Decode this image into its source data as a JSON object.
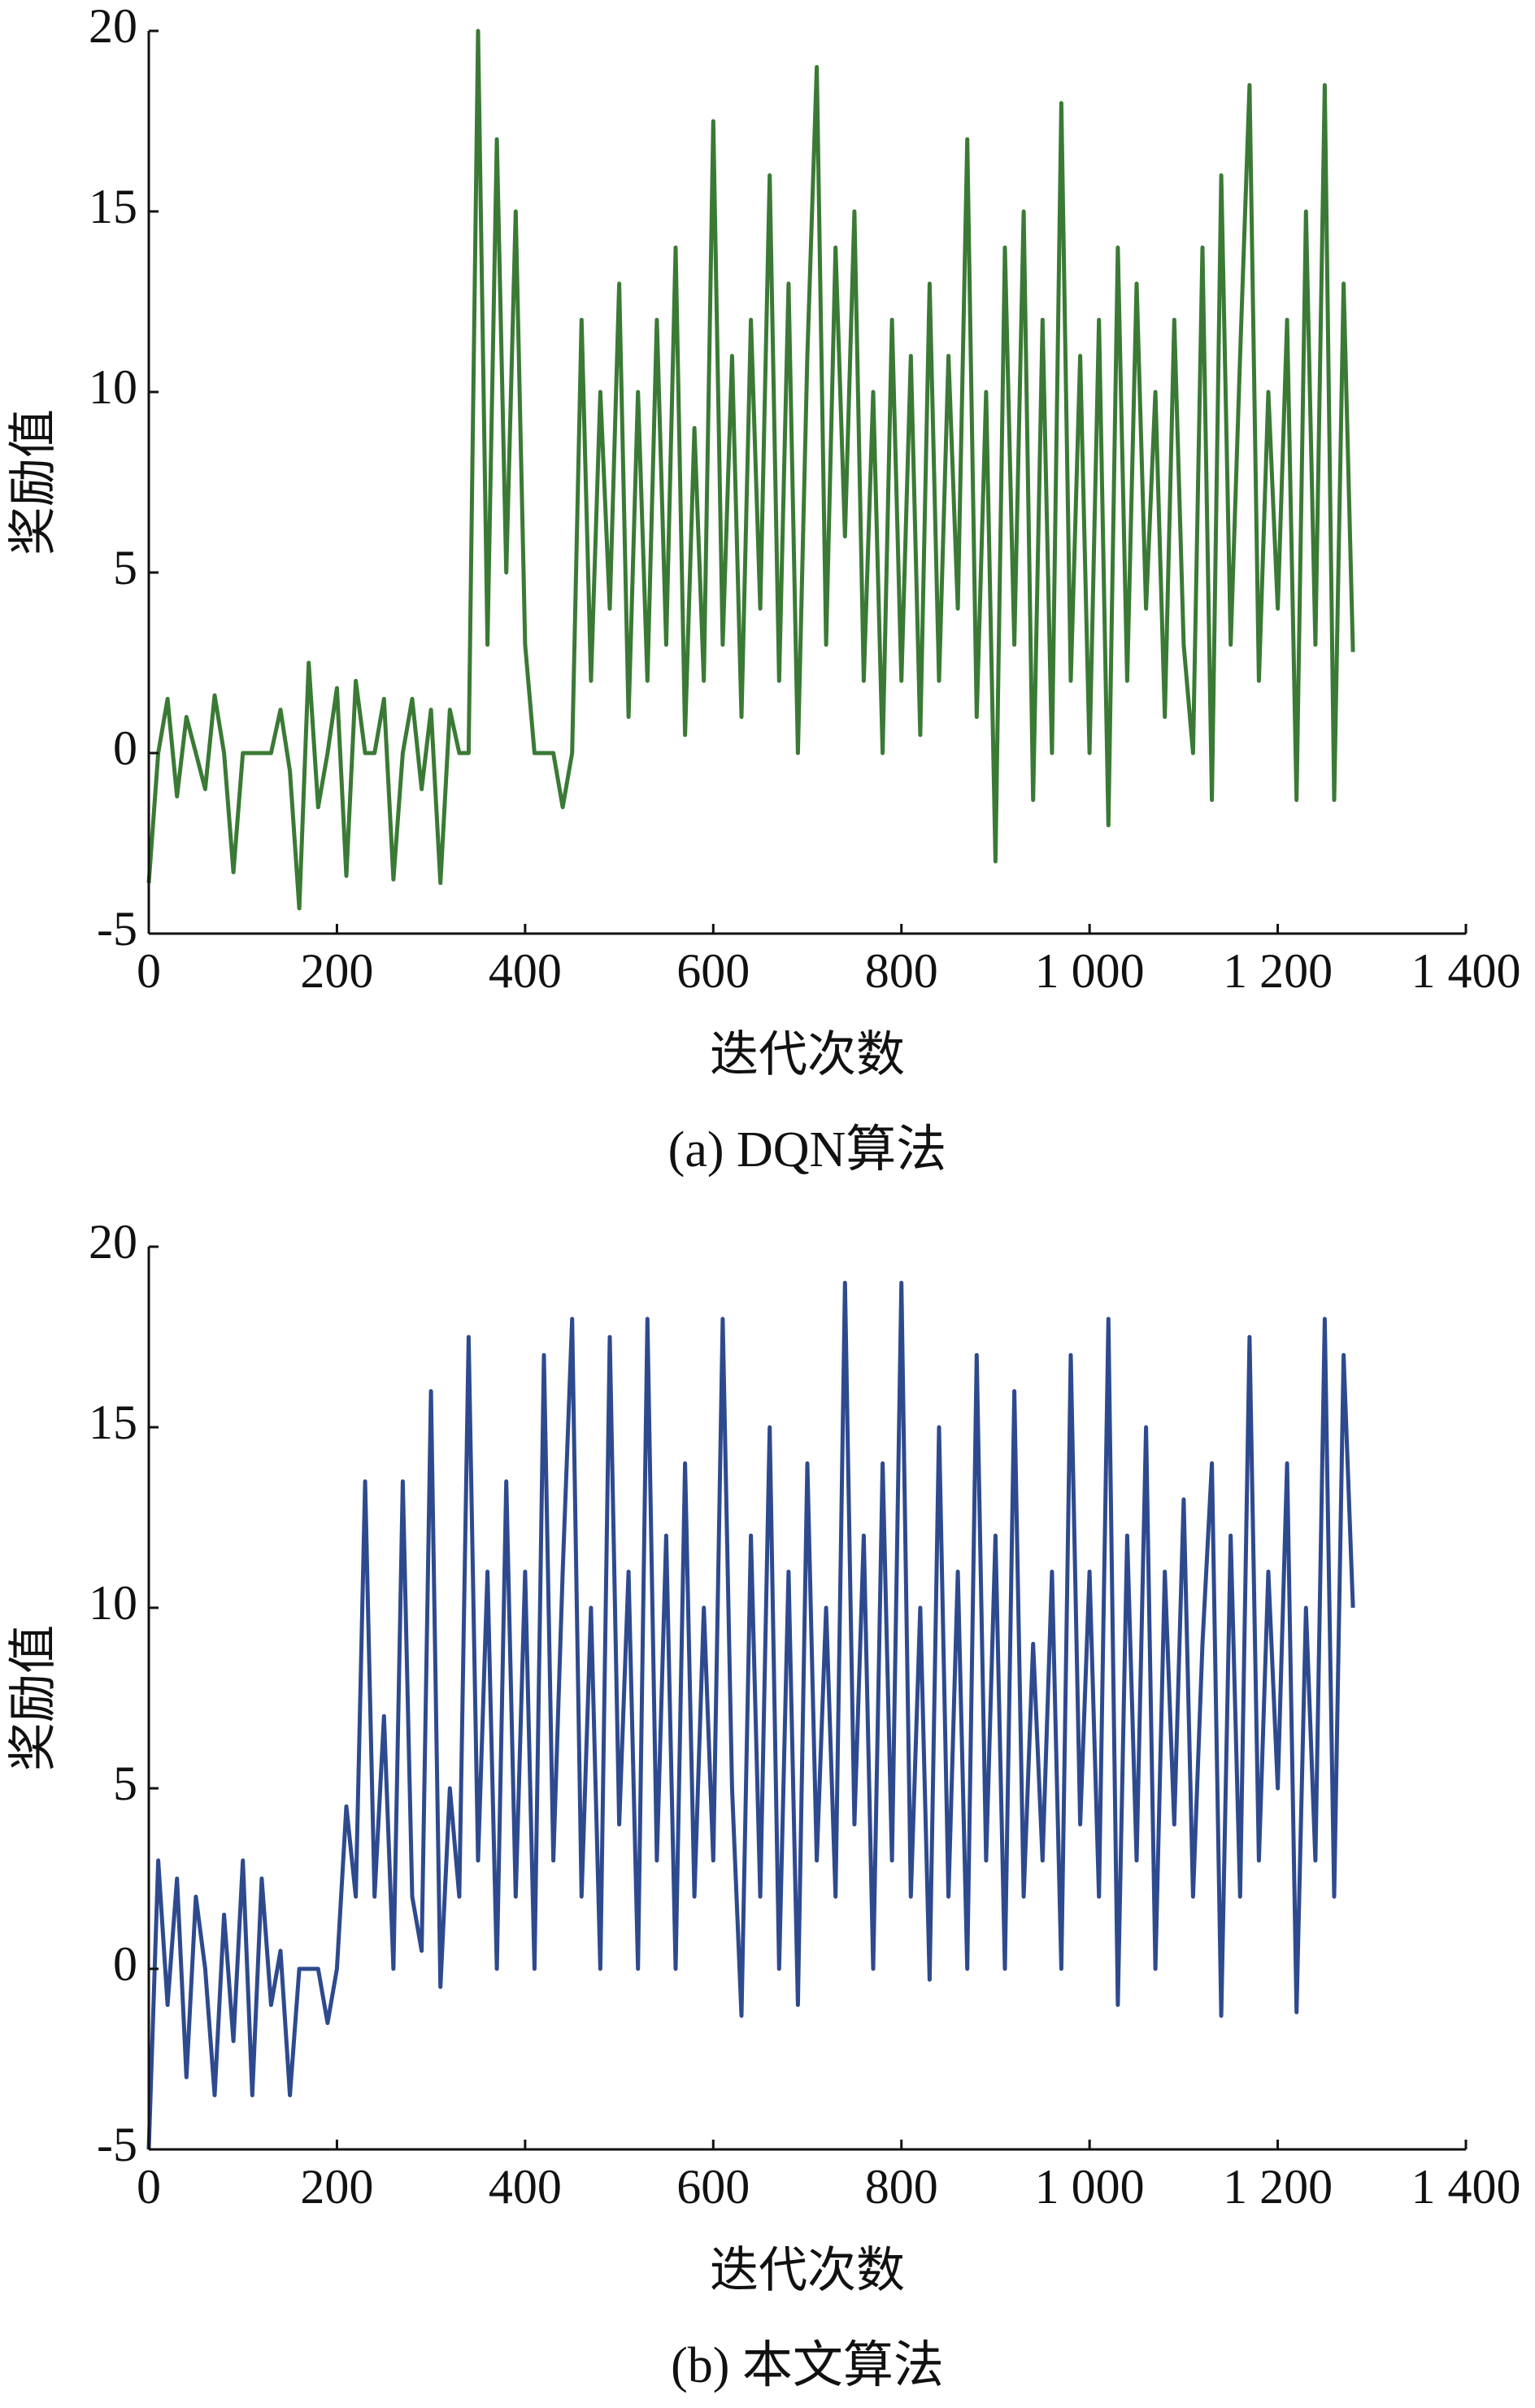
{
  "chart_data": [
    {
      "type": "line",
      "title": "(a) DQN算法",
      "xlabel": "迭代次数",
      "ylabel": "奖励值",
      "x": [
        0,
        10,
        20,
        30,
        40,
        50,
        60,
        70,
        80,
        90,
        100,
        110,
        120,
        130,
        140,
        150,
        160,
        170,
        180,
        190,
        200,
        210,
        220,
        230,
        240,
        250,
        260,
        270,
        280,
        290,
        300,
        310,
        320,
        330,
        340,
        350,
        360,
        370,
        380,
        390,
        400,
        410,
        420,
        430,
        440,
        450,
        460,
        470,
        480,
        490,
        500,
        510,
        520,
        530,
        540,
        550,
        560,
        570,
        580,
        590,
        600,
        610,
        620,
        630,
        640,
        650,
        660,
        670,
        680,
        690,
        700,
        710,
        720,
        730,
        740,
        750,
        760,
        770,
        780,
        790,
        800,
        810,
        820,
        830,
        840,
        850,
        860,
        870,
        880,
        890,
        900,
        910,
        920,
        930,
        940,
        950,
        960,
        970,
        980,
        990,
        1000,
        1010,
        1020,
        1030,
        1040,
        1050,
        1060,
        1070,
        1080,
        1090,
        1100,
        1110,
        1120,
        1130,
        1140,
        1150,
        1160,
        1170,
        1180,
        1190,
        1200,
        1210,
        1220,
        1230,
        1240,
        1250,
        1260,
        1270,
        1280
      ],
      "series": [
        {
          "color": "#3a7a35",
          "values": [
            -3.6,
            0,
            1.5,
            -1.2,
            1,
            0,
            -1,
            1.6,
            0,
            -3.3,
            0,
            0,
            0,
            0,
            1.2,
            -0.5,
            -4.3,
            2.5,
            -1.5,
            0,
            1.8,
            -3.4,
            2,
            0,
            0,
            1.5,
            -3.5,
            0,
            1.5,
            -1,
            1.2,
            -3.6,
            1.2,
            0,
            0,
            20,
            3,
            17,
            5,
            15,
            3,
            0,
            0,
            0,
            -1.5,
            0,
            12,
            2,
            10,
            4,
            13,
            1,
            10,
            2,
            12,
            3,
            14,
            0.5,
            9,
            2,
            17.5,
            3,
            11,
            1,
            12,
            4,
            16,
            2,
            13,
            0,
            11,
            19,
            3,
            14,
            6,
            15,
            2,
            10,
            0,
            12,
            2,
            11,
            0.5,
            13,
            2,
            11,
            4,
            17,
            1,
            10,
            -3,
            14,
            3,
            15,
            -1.3,
            12,
            0,
            18,
            2,
            11,
            0,
            12,
            -2,
            14,
            2,
            13,
            4,
            10,
            1,
            12,
            3,
            0,
            14,
            -1.3,
            16,
            3,
            11,
            18.5,
            2,
            10,
            4,
            12,
            -1.3,
            15,
            3,
            18.5,
            -1.3,
            13,
            2.8
          ]
        }
      ],
      "xlim": [
        0,
        1400
      ],
      "ylim": [
        -5,
        20
      ],
      "xticks": [
        0,
        200,
        400,
        600,
        800,
        {
          "value": 1000,
          "label": "1 000"
        },
        {
          "value": 1200,
          "label": "1 200"
        },
        {
          "value": 1400,
          "label": "1 400"
        }
      ],
      "yticks": [
        -5,
        0,
        5,
        10,
        15,
        20
      ],
      "grid": false
    },
    {
      "type": "line",
      "title": "(b) 本文算法",
      "xlabel": "迭代次数",
      "ylabel": "奖励值",
      "x": [
        0,
        10,
        20,
        30,
        40,
        50,
        60,
        70,
        80,
        90,
        100,
        110,
        120,
        130,
        140,
        150,
        160,
        170,
        180,
        190,
        200,
        210,
        220,
        230,
        240,
        250,
        260,
        270,
        280,
        290,
        300,
        310,
        320,
        330,
        340,
        350,
        360,
        370,
        380,
        390,
        400,
        410,
        420,
        430,
        440,
        450,
        460,
        470,
        480,
        490,
        500,
        510,
        520,
        530,
        540,
        550,
        560,
        570,
        580,
        590,
        600,
        610,
        620,
        630,
        640,
        650,
        660,
        670,
        680,
        690,
        700,
        710,
        720,
        730,
        740,
        750,
        760,
        770,
        780,
        790,
        800,
        810,
        820,
        830,
        840,
        850,
        860,
        870,
        880,
        890,
        900,
        910,
        920,
        930,
        940,
        950,
        960,
        970,
        980,
        990,
        1000,
        1010,
        1020,
        1030,
        1040,
        1050,
        1060,
        1070,
        1080,
        1090,
        1100,
        1110,
        1120,
        1130,
        1140,
        1150,
        1160,
        1170,
        1180,
        1190,
        1200,
        1210,
        1220,
        1230,
        1240,
        1250,
        1260,
        1270,
        1280
      ],
      "series": [
        {
          "color": "#2e4a8f",
          "values": [
            -5,
            3,
            -1,
            2.5,
            -3,
            2,
            0,
            -3.5,
            1.5,
            -2,
            3,
            -3.5,
            2.5,
            -1,
            0.5,
            -3.5,
            0,
            0,
            0,
            -1.5,
            0,
            4.5,
            2,
            13.5,
            2,
            7,
            0,
            13.5,
            2,
            0.5,
            16,
            -0.5,
            5,
            2,
            17.5,
            3,
            11,
            0,
            13.5,
            2,
            11,
            0,
            17,
            3,
            11,
            18,
            2,
            10,
            0,
            17.5,
            4,
            11,
            0,
            18,
            3,
            12,
            0,
            14,
            2,
            10,
            3,
            18,
            5,
            -1.3,
            12,
            2,
            15,
            0,
            11,
            -1,
            14,
            3,
            10,
            2,
            19,
            4,
            12,
            0,
            14,
            3,
            19,
            2,
            10,
            -0.3,
            15,
            2,
            11,
            0,
            17,
            3,
            12,
            0,
            16,
            2,
            9,
            3,
            11,
            0,
            17,
            4,
            11,
            2,
            18,
            -1,
            12,
            3,
            15,
            0,
            11,
            4,
            13,
            2,
            9,
            14,
            -1.3,
            12,
            2,
            17.5,
            3,
            11,
            5,
            14,
            -1.2,
            10,
            3,
            18,
            2,
            17,
            10
          ]
        }
      ],
      "xlim": [
        0,
        1400
      ],
      "ylim": [
        -5,
        20
      ],
      "xticks": [
        0,
        200,
        400,
        600,
        800,
        {
          "value": 1000,
          "label": "1 000"
        },
        {
          "value": 1200,
          "label": "1 200"
        },
        {
          "value": 1400,
          "label": "1 400"
        }
      ],
      "yticks": [
        -5,
        0,
        5,
        10,
        15,
        20
      ],
      "grid": false
    }
  ]
}
